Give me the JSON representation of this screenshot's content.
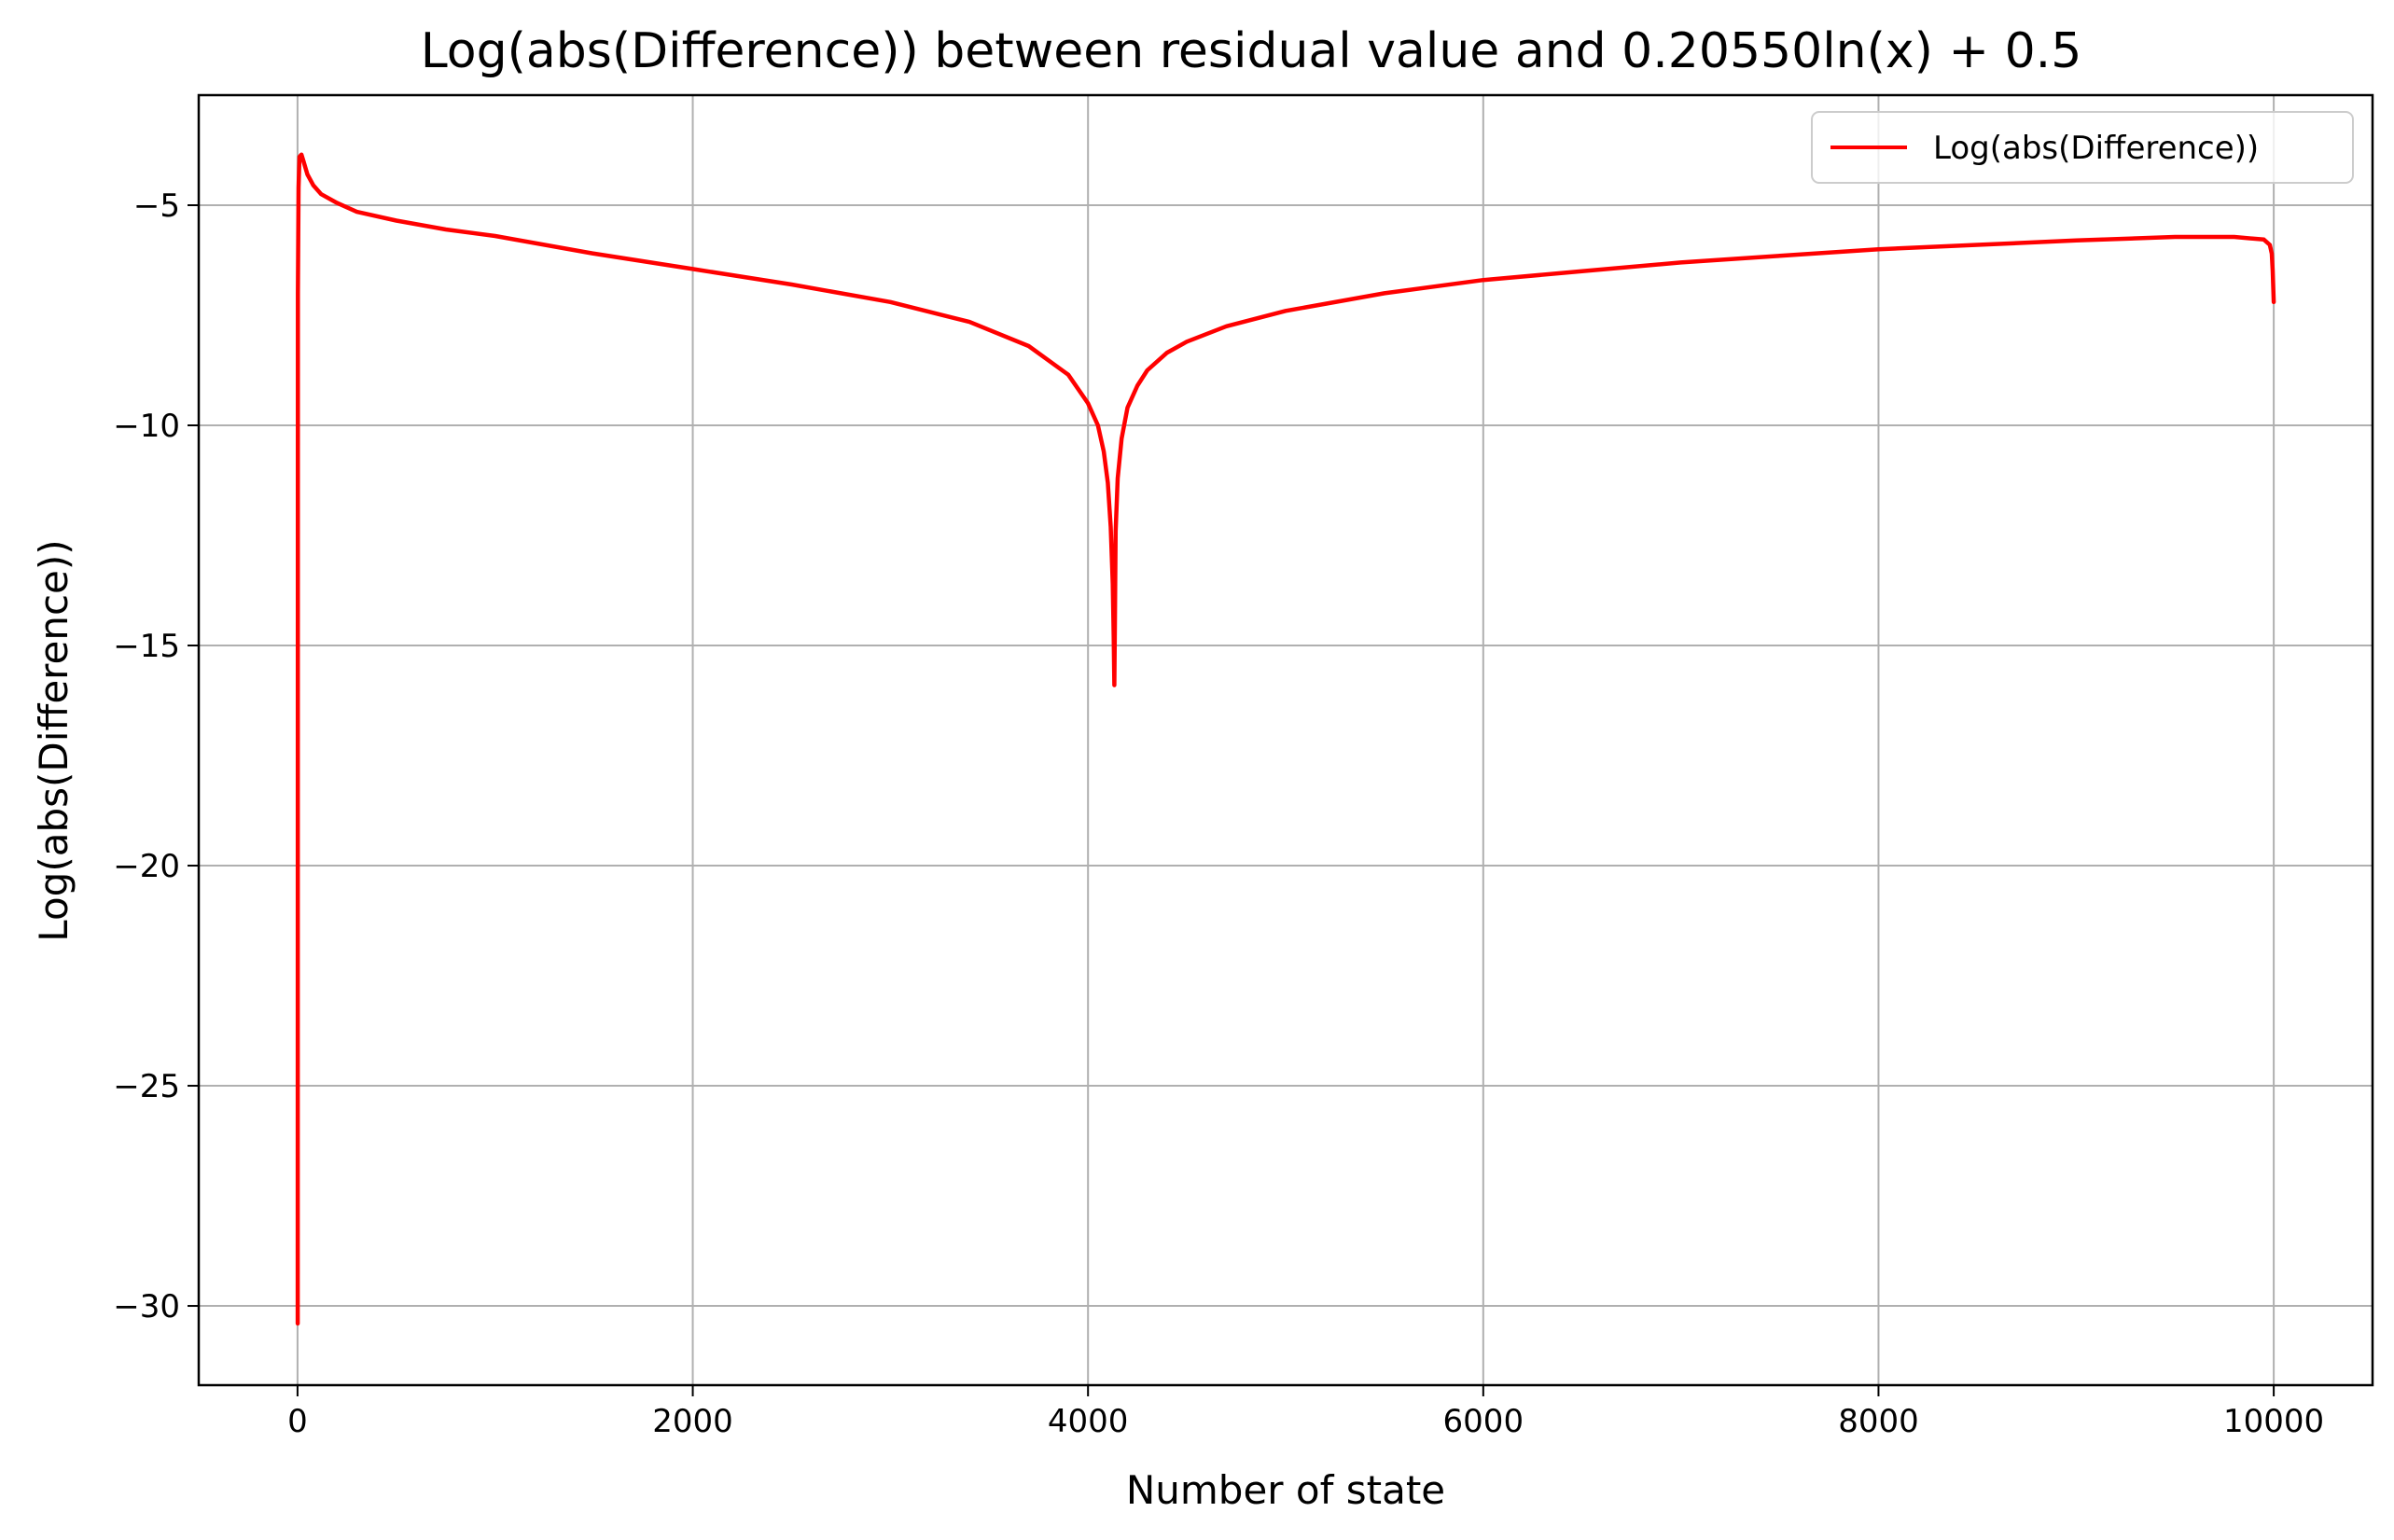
{
  "chart_data": {
    "type": "line",
    "title": "Log(abs(Difference)) between residual value and 0.20550ln(x) + 0.5",
    "xlabel": "Number of state",
    "ylabel": "Log(abs(Difference))",
    "xlim": [
      -500,
      10500
    ],
    "ylim": [
      -31.8,
      -2.5
    ],
    "xticks": [
      0,
      2000,
      4000,
      6000,
      8000,
      10000
    ],
    "xtick_labels": [
      "0",
      "2000",
      "4000",
      "6000",
      "8000",
      "10000"
    ],
    "yticks": [
      -30,
      -25,
      -20,
      -15,
      -10,
      -5
    ],
    "ytick_labels": [
      "−30",
      "−25",
      "−20",
      "−15",
      "−10",
      "−5"
    ],
    "grid": true,
    "legend": {
      "placement": "top-right",
      "entries": [
        {
          "label": "Log(abs(Difference))",
          "color": "#ff0000"
        }
      ]
    },
    "series": [
      {
        "name": "Log(abs(Difference))",
        "color": "#ff0000",
        "x": [
          1,
          2,
          5,
          10,
          20,
          30,
          50,
          80,
          120,
          200,
          300,
          500,
          750,
          1000,
          1500,
          2000,
          2500,
          3000,
          3400,
          3700,
          3900,
          4000,
          4050,
          4080,
          4100,
          4115,
          4125,
          4130,
          4133,
          4136,
          4140,
          4150,
          4170,
          4200,
          4250,
          4300,
          4400,
          4500,
          4700,
          5000,
          5500,
          6000,
          6500,
          7000,
          7500,
          8000,
          8500,
          9000,
          9500,
          9800,
          9950,
          9980,
          9990,
          9995,
          10000
        ],
        "y": [
          -30.4,
          -7.0,
          -4.6,
          -3.9,
          -3.85,
          -4.0,
          -4.3,
          -4.55,
          -4.75,
          -4.95,
          -5.15,
          -5.35,
          -5.55,
          -5.7,
          -6.1,
          -6.45,
          -6.8,
          -7.2,
          -7.65,
          -8.2,
          -8.85,
          -9.5,
          -10.0,
          -10.6,
          -11.3,
          -12.3,
          -13.6,
          -14.8,
          -15.9,
          -14.5,
          -12.4,
          -11.2,
          -10.3,
          -9.6,
          -9.1,
          -8.75,
          -8.35,
          -8.1,
          -7.75,
          -7.4,
          -7.0,
          -6.7,
          -6.5,
          -6.3,
          -6.15,
          -6.0,
          -5.9,
          -5.8,
          -5.72,
          -5.72,
          -5.78,
          -5.9,
          -6.1,
          -6.5,
          -7.2
        ]
      }
    ]
  }
}
